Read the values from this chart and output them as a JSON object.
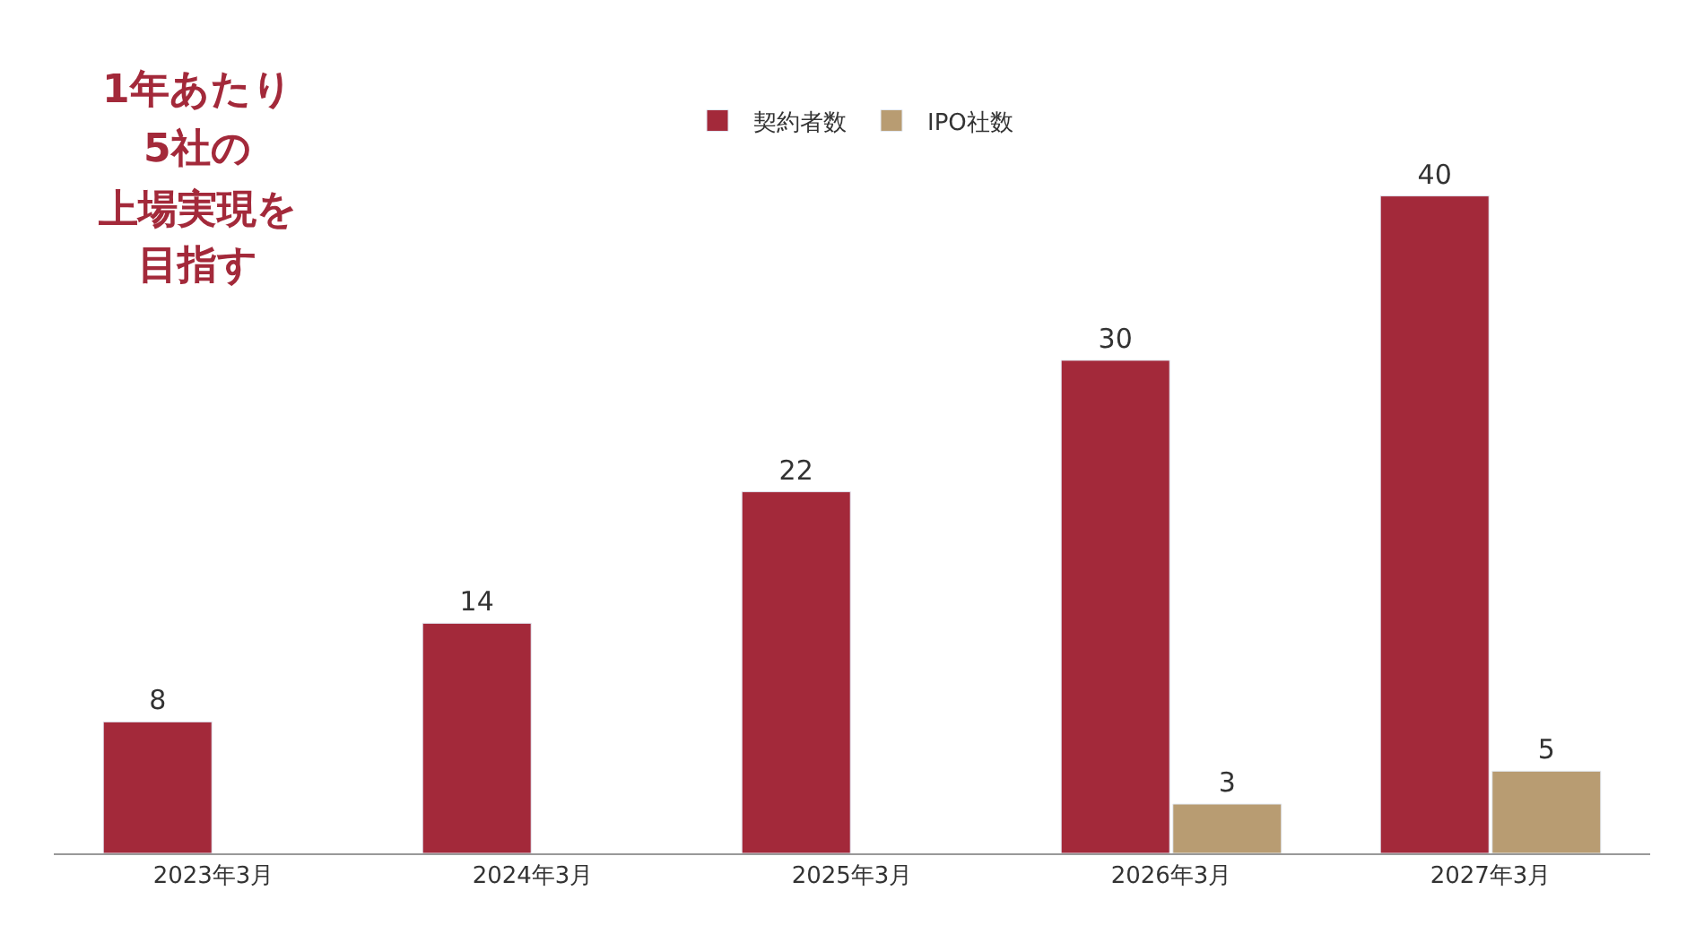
{
  "chart_data": {
    "type": "bar",
    "categories": [
      "2023年3月",
      "2024年3月",
      "2025年3月",
      "2026年3月",
      "2027年3月"
    ],
    "series": [
      {
        "name": "契約者数",
        "color": "#a3293a",
        "values": [
          8,
          14,
          22,
          30,
          40
        ]
      },
      {
        "name": "IPO社数",
        "color": "#b89c72",
        "values": [
          null,
          null,
          null,
          3,
          5
        ]
      }
    ],
    "data_labels": true,
    "legend": "top",
    "annotations": [
      "1年あたり",
      "5社の",
      "上場実現を",
      "目指す"
    ]
  }
}
